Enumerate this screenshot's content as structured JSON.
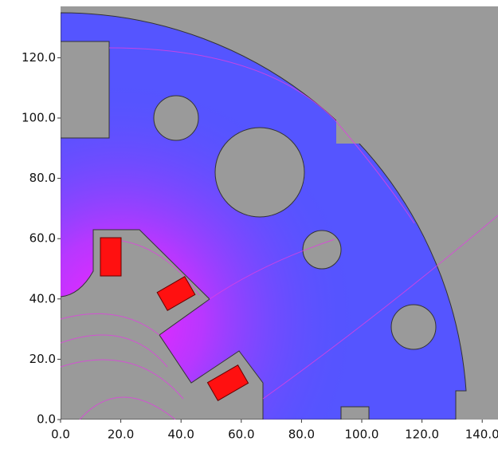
{
  "chart_data": {
    "type": "field-plot",
    "xlim": [
      0,
      145
    ],
    "ylim": [
      0,
      137
    ],
    "xticks": [
      {
        "value": 0,
        "label": "0.0"
      },
      {
        "value": 20,
        "label": "20.0"
      },
      {
        "value": 40,
        "label": "40.0"
      },
      {
        "value": 60,
        "label": "60.0"
      },
      {
        "value": 80,
        "label": "80.0"
      },
      {
        "value": 100,
        "label": "100.0"
      },
      {
        "value": 120,
        "label": "120.0"
      },
      {
        "value": 140,
        "label": "140.0"
      }
    ],
    "yticks": [
      {
        "value": 0,
        "label": "0.0"
      },
      {
        "value": 20,
        "label": "20.0"
      },
      {
        "value": 40,
        "label": "40.0"
      },
      {
        "value": 60,
        "label": "60.0"
      },
      {
        "value": 80,
        "label": "80.0"
      },
      {
        "value": 100,
        "label": "100.0"
      },
      {
        "value": 120,
        "label": "120.0"
      }
    ]
  }
}
